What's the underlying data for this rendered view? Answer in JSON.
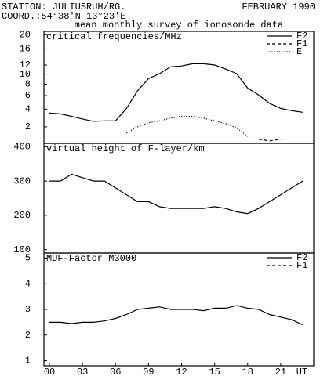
{
  "header": {
    "station": "STATION: JULIUSRUH/RG.",
    "date": "FEBRUARY 1990",
    "coord": "COORD.:54°38'N 13°23'E",
    "subtitle": "mean monthly survey of ionosonde data"
  },
  "chart_data": [
    {
      "type": "line",
      "title": "critical frequencies/MHz",
      "yscale": "sqrt",
      "x": [
        0,
        1,
        2,
        3,
        4,
        5,
        6,
        7,
        8,
        9,
        10,
        11,
        12,
        13,
        14,
        15,
        16,
        17,
        18,
        19,
        20,
        21,
        22,
        23
      ],
      "xlim": [
        -0.5,
        24
      ],
      "ylim": [
        0.75,
        21
      ],
      "yticks": [
        2,
        4,
        6,
        8,
        10,
        12,
        16,
        20
      ],
      "series": [
        {
          "name": "F2",
          "color": "#000000",
          "dash": "solid",
          "values": [
            3.5,
            3.4,
            3.1,
            2.8,
            2.55,
            2.6,
            2.6,
            4.1,
            6.8,
            9.1,
            10.1,
            11.6,
            11.8,
            12.3,
            12.3,
            12.0,
            11.1,
            10.1,
            7.3,
            6.1,
            4.8,
            4.1,
            3.8,
            3.6
          ]
        },
        {
          "name": "F1",
          "color": "#000000",
          "dash": "dashed",
          "values": [
            null,
            null,
            null,
            null,
            null,
            null,
            null,
            null,
            null,
            null,
            null,
            null,
            null,
            null,
            null,
            null,
            null,
            null,
            null,
            1.0,
            0.9,
            1.0,
            null,
            null
          ]
        },
        {
          "name": "E",
          "color": "#000000",
          "dash": "dotted",
          "values": [
            null,
            null,
            null,
            null,
            null,
            null,
            null,
            1.46,
            2.0,
            2.4,
            2.6,
            2.9,
            3.1,
            3.1,
            2.9,
            2.6,
            2.3,
            1.9,
            1.2,
            null,
            null,
            null,
            null,
            null
          ]
        }
      ]
    },
    {
      "type": "line",
      "title": "virtual height of F-layer/km",
      "x": [
        0,
        1,
        2,
        3,
        4,
        5,
        6,
        7,
        8,
        9,
        10,
        11,
        12,
        13,
        14,
        15,
        16,
        17,
        18,
        19,
        20,
        21,
        22,
        23
      ],
      "xlim": [
        -0.5,
        24
      ],
      "ylim": [
        90,
        410
      ],
      "yticks": [
        100,
        200,
        300,
        400
      ],
      "series": [
        {
          "color": "#000000",
          "dash": "solid",
          "values": [
            300,
            300,
            320,
            310,
            300,
            300,
            280,
            260,
            240,
            240,
            225,
            220,
            220,
            220,
            220,
            225,
            220,
            210,
            205,
            220,
            240,
            260,
            280,
            300
          ]
        }
      ]
    },
    {
      "type": "line",
      "title": "MUF-Factor M3000",
      "x": [
        0,
        1,
        2,
        3,
        4,
        5,
        6,
        7,
        8,
        9,
        10,
        11,
        12,
        13,
        14,
        15,
        16,
        17,
        18,
        19,
        20,
        21,
        22,
        23
      ],
      "xlim": [
        -0.5,
        24
      ],
      "ylim": [
        0.8,
        5.2
      ],
      "yticks": [
        1,
        2,
        3,
        4,
        5
      ],
      "xticks": [
        {
          "value": 0,
          "label": "00"
        },
        {
          "value": 3,
          "label": "03"
        },
        {
          "value": 6,
          "label": "06"
        },
        {
          "value": 9,
          "label": "09"
        },
        12,
        15,
        18,
        21
      ],
      "xlabel": "UT",
      "series": [
        {
          "name": "F2",
          "color": "#000000",
          "dash": "solid",
          "values": [
            2.5,
            2.5,
            2.45,
            2.5,
            2.5,
            2.55,
            2.65,
            2.8,
            3.0,
            3.05,
            3.1,
            3.0,
            3.0,
            3.0,
            2.95,
            3.05,
            3.05,
            3.15,
            3.05,
            3.0,
            2.8,
            2.7,
            2.6,
            2.4
          ]
        },
        {
          "name": "F1",
          "color": "#000000",
          "dash": "dashed",
          "values": [
            null,
            null,
            null,
            null,
            null,
            null,
            null,
            null,
            null,
            null,
            null,
            null,
            null,
            null,
            null,
            null,
            null,
            null,
            null,
            null,
            null,
            null,
            null,
            null
          ]
        }
      ]
    }
  ]
}
